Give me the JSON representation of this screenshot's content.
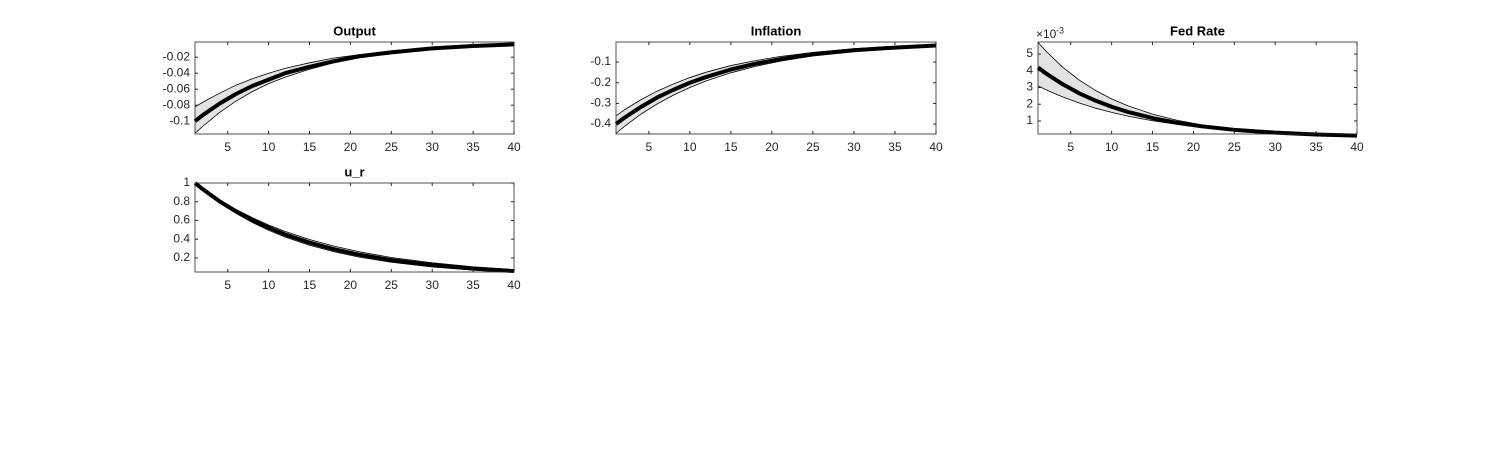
{
  "chart_data": [
    {
      "type": "line",
      "title": "Output",
      "x": [
        1,
        2,
        4,
        6,
        8,
        10,
        12,
        15,
        18,
        21,
        25,
        30,
        35,
        40
      ],
      "values": [
        -0.1,
        -0.092,
        -0.078,
        -0.066,
        -0.056,
        -0.048,
        -0.04,
        -0.032,
        -0.025,
        -0.019,
        -0.014,
        -0.009,
        -0.006,
        -0.004
      ],
      "lower": [
        -0.115,
        -0.106,
        -0.089,
        -0.075,
        -0.063,
        -0.053,
        -0.045,
        -0.035,
        -0.027,
        -0.021,
        -0.015,
        -0.01,
        -0.006,
        -0.004
      ],
      "upper": [
        -0.082,
        -0.076,
        -0.065,
        -0.055,
        -0.047,
        -0.04,
        -0.034,
        -0.027,
        -0.021,
        -0.017,
        -0.012,
        -0.008,
        -0.005,
        -0.004
      ],
      "color": "#000000",
      "band_color": "#e3e3e3",
      "xlim": [
        1,
        40
      ],
      "xticks": [
        5,
        10,
        15,
        20,
        25,
        30,
        35,
        40
      ],
      "ylim": [
        -0.116,
        -0.001
      ],
      "yticks": [
        -0.1,
        -0.08,
        -0.06,
        -0.04,
        -0.02
      ]
    },
    {
      "type": "line",
      "title": "Inflation",
      "x": [
        1,
        2,
        4,
        6,
        8,
        10,
        12,
        15,
        18,
        21,
        25,
        30,
        35,
        40
      ],
      "values": [
        -0.4,
        -0.37,
        -0.318,
        -0.272,
        -0.234,
        -0.2,
        -0.172,
        -0.136,
        -0.108,
        -0.086,
        -0.063,
        -0.043,
        -0.03,
        -0.02
      ],
      "lower": [
        -0.445,
        -0.412,
        -0.353,
        -0.303,
        -0.26,
        -0.223,
        -0.191,
        -0.152,
        -0.121,
        -0.096,
        -0.07,
        -0.048,
        -0.033,
        -0.022
      ],
      "upper": [
        -0.36,
        -0.332,
        -0.283,
        -0.241,
        -0.206,
        -0.175,
        -0.149,
        -0.117,
        -0.093,
        -0.073,
        -0.053,
        -0.035,
        -0.024,
        -0.016
      ],
      "color": "#000000",
      "band_color": "#e3e3e3",
      "xlim": [
        1,
        40
      ],
      "xticks": [
        5,
        10,
        15,
        20,
        25,
        30,
        35,
        40
      ],
      "ylim": [
        -0.448,
        -0.003
      ],
      "yticks": [
        -0.4,
        -0.3,
        -0.2,
        -0.1
      ]
    },
    {
      "type": "line",
      "title": "Fed Rate",
      "y_multiplier": "×10",
      "y_multiplier_exponent": "-3",
      "x": [
        1,
        2,
        4,
        6,
        8,
        10,
        12,
        15,
        18,
        21,
        25,
        30,
        35,
        40
      ],
      "values": [
        4.2,
        3.83,
        3.2,
        2.66,
        2.22,
        1.85,
        1.54,
        1.17,
        0.89,
        0.68,
        0.47,
        0.3,
        0.19,
        0.12
      ],
      "lower": [
        3.1,
        2.86,
        2.44,
        2.08,
        1.77,
        1.51,
        1.29,
        1.01,
        0.8,
        0.62,
        0.44,
        0.28,
        0.18,
        0.11
      ],
      "upper": [
        5.7,
        5.16,
        4.22,
        3.46,
        2.83,
        2.32,
        1.9,
        1.41,
        1.04,
        0.77,
        0.52,
        0.31,
        0.19,
        0.12
      ],
      "color": "#000000",
      "band_color": "#e3e3e3",
      "xlim": [
        1,
        40
      ],
      "xticks": [
        5,
        10,
        15,
        20,
        25,
        30,
        35,
        40
      ],
      "ylim": [
        0.22,
        5.72
      ],
      "yticks": [
        1,
        2,
        3,
        4,
        5
      ]
    },
    {
      "type": "line",
      "title": "u_r",
      "x": [
        1,
        2,
        4,
        6,
        8,
        10,
        12,
        15,
        18,
        21,
        25,
        30,
        35,
        40
      ],
      "values": [
        1,
        0.93,
        0.805,
        0.697,
        0.603,
        0.523,
        0.452,
        0.364,
        0.294,
        0.236,
        0.177,
        0.123,
        0.086,
        0.06
      ],
      "lower": [
        1,
        0.925,
        0.791,
        0.677,
        0.579,
        0.495,
        0.424,
        0.335,
        0.266,
        0.21,
        0.154,
        0.104,
        0.071,
        0.048
      ],
      "upper": [
        1,
        0.936,
        0.82,
        0.719,
        0.63,
        0.552,
        0.484,
        0.397,
        0.326,
        0.267,
        0.205,
        0.148,
        0.106,
        0.076
      ],
      "color": "#000000",
      "band_color": "#e3e3e3",
      "xlim": [
        1,
        40
      ],
      "xticks": [
        5,
        10,
        15,
        20,
        25,
        30,
        35,
        40
      ],
      "ylim": [
        0.05,
        1
      ],
      "yticks": [
        0.2,
        0.4,
        0.6,
        0.8,
        1
      ]
    }
  ]
}
